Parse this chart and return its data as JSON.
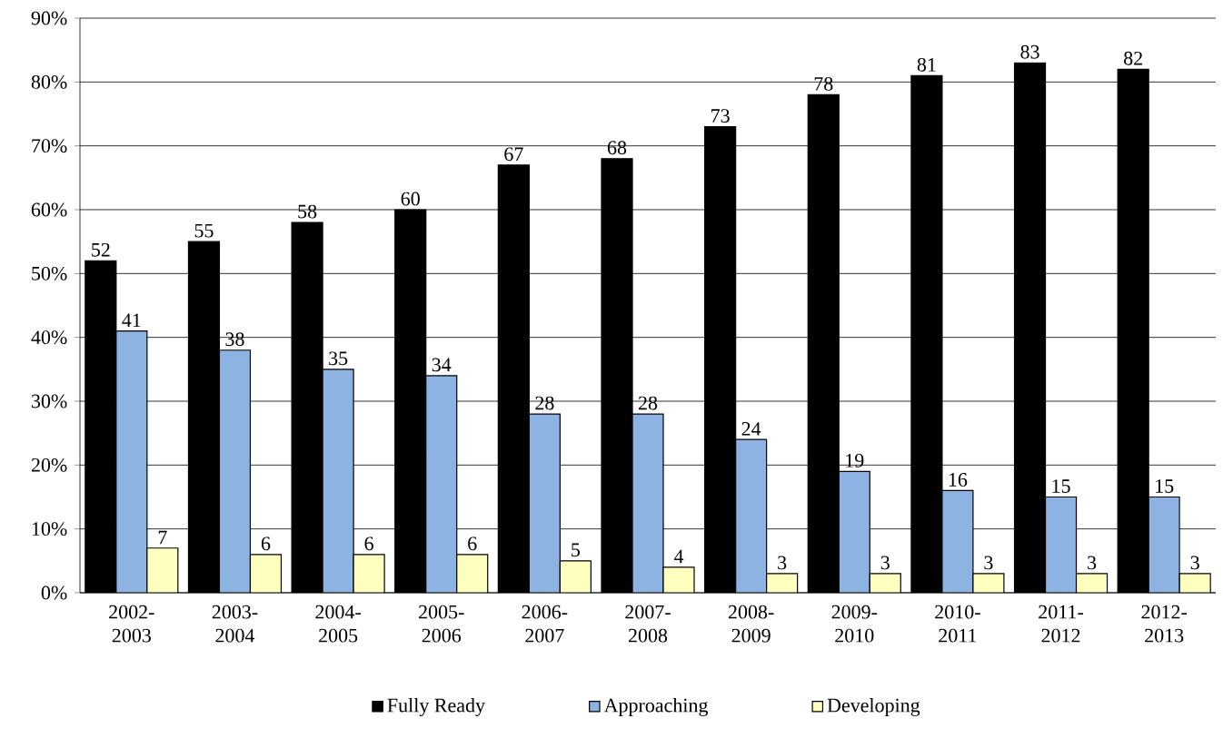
{
  "chart_data": {
    "type": "bar",
    "categories": [
      "2002-2003",
      "2003-2004",
      "2004-2005",
      "2005-2006",
      "2006-2007",
      "2007-2008",
      "2008-2009",
      "2009-2010",
      "2010-2011",
      "2011-2012",
      "2012-2013"
    ],
    "series": [
      {
        "name": "Fully Ready",
        "color": "#000000",
        "values": [
          52,
          55,
          58,
          60,
          67,
          68,
          73,
          78,
          81,
          83,
          82
        ]
      },
      {
        "name": "Approaching",
        "color": "#8db3e2",
        "values": [
          41,
          38,
          35,
          34,
          28,
          28,
          24,
          19,
          16,
          15,
          15
        ]
      },
      {
        "name": "Developing",
        "color": "#ffffc0",
        "values": [
          7,
          6,
          6,
          6,
          5,
          4,
          3,
          3,
          3,
          3,
          3
        ]
      }
    ],
    "ylim": [
      0,
      90
    ],
    "yticks": [
      {
        "value": 0,
        "label": "0%"
      },
      {
        "value": 10,
        "label": "10%"
      },
      {
        "value": 20,
        "label": "20%"
      },
      {
        "value": 30,
        "label": "30%"
      },
      {
        "value": 40,
        "label": "40%"
      },
      {
        "value": 50,
        "label": "50%"
      },
      {
        "value": 60,
        "label": "60%"
      },
      {
        "value": 70,
        "label": "70%"
      },
      {
        "value": 80,
        "label": "80%"
      },
      {
        "value": 90,
        "label": "90%"
      }
    ],
    "grid": "y",
    "legend": "bottom",
    "data_labels": true
  }
}
